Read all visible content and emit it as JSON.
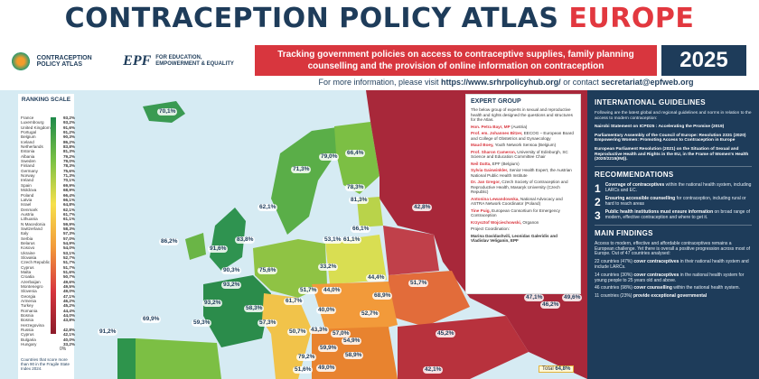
{
  "header": {
    "title_main": "CONTRACEPTION POLICY ATLAS ",
    "title_accent": "EUROPE",
    "logo_left": "CONTRACEPTION POLICY ATLAS",
    "logo_epf_mark": "EPF",
    "logo_epf_text": "FOR EDUCATION, EMPOWERMENT & EQUALITY",
    "banner": "Tracking government policies on access to contraceptive supplies, family planning counselling and the provision of online information on contraception",
    "year": "2025",
    "more_info_prefix": "For more information, please visit ",
    "more_info_url": "https://www.srhrpolicyhub.org/",
    "more_info_mid": " or contact ",
    "more_info_email": "secretariat@epfweb.org"
  },
  "scale": {
    "title": "RANKING SCALE",
    "rows": [
      {
        "country": "France",
        "value": "93,2%"
      },
      {
        "country": "Luxembourg",
        "value": "93,2%"
      },
      {
        "country": "United Kingdom",
        "value": "91,6%"
      },
      {
        "country": "Portugal",
        "value": "91,2%"
      },
      {
        "country": "Belgium",
        "value": "90,3%"
      },
      {
        "country": "Iceland",
        "value": "86,2%"
      },
      {
        "country": "Netherlands",
        "value": "83,8%"
      },
      {
        "country": "Estonia",
        "value": "81,3%"
      },
      {
        "country": "Albania",
        "value": "79,2%"
      },
      {
        "country": "Sweden",
        "value": "79,0%"
      },
      {
        "country": "Finland",
        "value": "78,3%"
      },
      {
        "country": "Germany",
        "value": "75,6%"
      },
      {
        "country": "Norway",
        "value": "71,3%"
      },
      {
        "country": "Ireland",
        "value": "70,1%"
      },
      {
        "country": "Spain",
        "value": "69,9%"
      },
      {
        "country": "Moldova",
        "value": "68,9%"
      },
      {
        "country": "Poland",
        "value": "66,4%"
      },
      {
        "country": "Latvia",
        "value": "66,1%"
      },
      {
        "country": "Israel",
        "value": "64,8%"
      },
      {
        "country": "Denmark",
        "value": "62,1%"
      },
      {
        "country": "Austria",
        "value": "61,7%"
      },
      {
        "country": "Lithuania",
        "value": "61,1%"
      },
      {
        "country": "N Macedonia",
        "value": "59,9%"
      },
      {
        "country": "Switzerland",
        "value": "58,3%"
      },
      {
        "country": "Italy",
        "value": "57,3%"
      },
      {
        "country": "Serbia",
        "value": "57,0%"
      },
      {
        "country": "Belarus",
        "value": "54,9%"
      },
      {
        "country": "Kosovo",
        "value": "54,0%"
      },
      {
        "country": "Ukraine",
        "value": "53,1%"
      },
      {
        "country": "Slovakia",
        "value": "52,7%"
      },
      {
        "country": "Czech Republic",
        "value": "51,7%"
      },
      {
        "country": "Cyprus",
        "value": "51,7%"
      },
      {
        "country": "Malta",
        "value": "51,6%"
      },
      {
        "country": "Croatia",
        "value": "50,7%"
      },
      {
        "country": "Azerbaijan",
        "value": "49,6%"
      },
      {
        "country": "Montenegro",
        "value": "49,5%"
      },
      {
        "country": "Slovenia",
        "value": "49,0%"
      },
      {
        "country": "Georgia",
        "value": "47,1%"
      },
      {
        "country": "Armenia",
        "value": "46,2%"
      },
      {
        "country": "Turkey",
        "value": "45,2%"
      },
      {
        "country": "Romania",
        "value": "44,4%"
      },
      {
        "country": "Bosnia",
        "value": "44,0%"
      },
      {
        "country": "Bosnia Herzegovina",
        "value": "43,8%"
      },
      {
        "country": "Russia",
        "value": "42,8%"
      },
      {
        "country": "Cyprus",
        "value": "42,1%"
      },
      {
        "country": "Bulgaria",
        "value": "40,0%"
      },
      {
        "country": "Hungary",
        "value": "33,2%"
      }
    ],
    "zero": "0%",
    "note": "Countries that score more than 90 in the Fragile State Index 2024."
  },
  "map_pins": [
    {
      "label": "70,1%"
    },
    {
      "label": "79,0%"
    },
    {
      "label": "66,4%"
    },
    {
      "label": "71,3%"
    },
    {
      "label": "78,3%"
    },
    {
      "label": "81,3%"
    },
    {
      "label": "62,1%"
    },
    {
      "label": "66,1%"
    },
    {
      "label": "86,2%"
    },
    {
      "label": "61,1%"
    },
    {
      "label": "53,1%"
    },
    {
      "label": "42,8%"
    },
    {
      "label": "83,8%"
    },
    {
      "label": "91,6%"
    },
    {
      "label": "90,3%"
    },
    {
      "label": "75,6%"
    },
    {
      "label": "44,4%"
    },
    {
      "label": "33,2%"
    },
    {
      "label": "93,2%"
    },
    {
      "label": "51,7%"
    },
    {
      "label": "44,0%"
    },
    {
      "label": "68,9%"
    },
    {
      "label": "51,7%"
    },
    {
      "label": "93,2%"
    },
    {
      "label": "58,3%"
    },
    {
      "label": "40,0%"
    },
    {
      "label": "52,7%"
    },
    {
      "label": "59,3%"
    },
    {
      "label": "61,7%"
    },
    {
      "label": "57,3%"
    },
    {
      "label": "50,7%"
    },
    {
      "label": "43,3%"
    },
    {
      "label": "57,0%"
    },
    {
      "label": "54,9%"
    },
    {
      "label": "91,2%"
    },
    {
      "label": "69,9%"
    },
    {
      "label": "59,9%"
    },
    {
      "label": "58,9%"
    },
    {
      "label": "79,2%"
    },
    {
      "label": "49,0%"
    },
    {
      "label": "47,1%"
    },
    {
      "label": "46,2%"
    },
    {
      "label": "49,6%"
    },
    {
      "label": "45,2%"
    },
    {
      "label": "51,6%"
    },
    {
      "label": "42,1%"
    }
  ],
  "total": {
    "label": "Total ",
    "value": "64,8%"
  },
  "expert": {
    "title": "EXPERT GROUP",
    "intro": "The below group of experts in sexual and reproductive health and rights designed the questions and structures for the Atlas.",
    "members": [
      {
        "name": "Hon. Petra Bayr, MP",
        "aff": " (Austria)"
      },
      {
        "name": "Prof. em. Johannes Bitzer,",
        "aff": " EECOG – European Board and College of Obstetrics and Gynaecology"
      },
      {
        "name": "Maud Boey,",
        "aff": " Youth Network Sensoa (Belgium)"
      },
      {
        "name": "Prof. Sharon Cameron,",
        "aff": " University of Edinburgh, SC Science and Education Committee Chair"
      },
      {
        "name": "Neil Datta,",
        "aff": " EPF (Belgium)"
      },
      {
        "name": "Sylvia Gaiswinkler,",
        "aff": " Senior Health Expert, the Austrian National Public Health Institute"
      },
      {
        "name": "Dr. Jan Gregor,",
        "aff": " Czech Society of Contraception and Reproductive Health, Masaryk University (Czech Republic)"
      },
      {
        "name": "Antonina Lewandowska,",
        "aff": " National Advocacy and ASTRA Network Coordinator (Poland)"
      },
      {
        "name": "Tine Puig,",
        "aff": " European Consortium for Emergency Contraception"
      },
      {
        "name": "Krzysztof Wojciechowski,",
        "aff": " Organon"
      }
    ],
    "coordination": "Project Coordination:",
    "coordinators": "Marina Davidashvili, Leonidas Galeridis and Vladislav Veliganin, EPF"
  },
  "panel": {
    "guidelines_title": "INTERNATIONAL GUIDELINES",
    "guidelines_intro": "Following are the latest global and regional guidelines and norms in relation to the access to modern contraception:",
    "guidelines": [
      {
        "title": "Nairobi Statement on ICPD25 : Accelerating the Promise (2019)"
      },
      {
        "title": "Parliamentary Assembly of the Council of Europe: Resolution 2331 (2020) Empowering Women: Promoting Access to Contraception in Europe"
      },
      {
        "title": "European Parliament Resolution (2021) on the Situation of Sexual and Reproductive Health and Rights in the EU, in the Frame of Women's Health (2020/2215(INI))."
      }
    ],
    "rec_title": "RECOMMENDATIONS",
    "recs": [
      {
        "n": "1",
        "bold": "Coverage of contraceptives",
        "text": " within the national health system, including LARCs and EC."
      },
      {
        "n": "2",
        "bold": "Ensuring accessible counselling",
        "text": " for contraception, including rural or hard to reach areas"
      },
      {
        "n": "3",
        "bold": "Public health institutions must ensure information",
        "text": " on broad range of modern, effective contraception and where to get it."
      }
    ],
    "findings_title": "MAIN FINDINGS",
    "findings_intro": "Access to modern, effective and affordable contraceptives remains a European challenge. Yet there is overall a positive progression across most of Europe. Out of 47 countries analysed:",
    "findings": [
      {
        "pre": "22 countries (47%) ",
        "bold": "cover contraceptives",
        "post": " in their national health system and include LARCs."
      },
      {
        "pre": "14 countries (30%) ",
        "bold": "cover contraceptives",
        "post": " in the national health system for young people to 25 years old and above."
      },
      {
        "pre": "46 countries (98%) ",
        "bold": "cover counselling",
        "post": " within the national health system."
      },
      {
        "pre": "11 countries (23%) ",
        "bold": "provide exceptional governmental",
        "post": ""
      }
    ]
  },
  "colors": {
    "navy": "#1e3c5a",
    "red": "#d8363e",
    "green": "#2e9a4a",
    "orange": "#f29a3a",
    "yellow": "#f6e04b",
    "maroon": "#8c1b2a"
  }
}
